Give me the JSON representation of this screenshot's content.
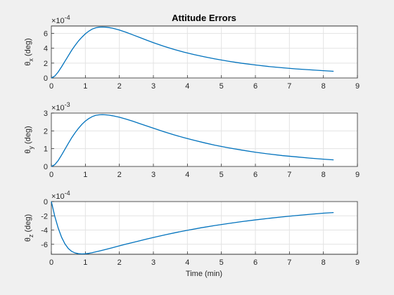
{
  "chart_data": [
    {
      "type": "line",
      "title": "Attitude Errors",
      "xlabel": "",
      "ylabel_sym": "θ",
      "ylabel_sub": "x",
      "ylabel_unit": "(deg)",
      "exponent_label": "×10",
      "exponent_power": "-4",
      "xlim": [
        0,
        9
      ],
      "ylim": [
        0,
        0.0007
      ],
      "xticks": [
        "0",
        "1",
        "2",
        "3",
        "4",
        "5",
        "6",
        "7",
        "8",
        "9"
      ],
      "yticks": [
        {
          "v": 0,
          "label": "0"
        },
        {
          "v": 0.0002,
          "label": "2"
        },
        {
          "v": 0.0004,
          "label": "4"
        },
        {
          "v": 0.0006,
          "label": "6"
        }
      ],
      "grid": true,
      "x": [
        0,
        0.1,
        0.2,
        0.3,
        0.4,
        0.5,
        0.6,
        0.7,
        0.8,
        0.9,
        1.0,
        1.1,
        1.2,
        1.3,
        1.4,
        1.5,
        1.6,
        1.7,
        1.8,
        2.0,
        2.2,
        2.4,
        2.6,
        2.8,
        3.0,
        3.3,
        3.6,
        3.9,
        4.2,
        4.5,
        4.8,
        5.2,
        5.6,
        6.0,
        6.4,
        6.8,
        7.2,
        7.6,
        8.0,
        8.3
      ],
      "y": [
        0,
        2.5e-05,
        8e-05,
        0.00015,
        0.000225,
        0.0003,
        0.000375,
        0.00044,
        0.0005,
        0.00055,
        0.000595,
        0.00063,
        0.000658,
        0.000675,
        0.000684,
        0.000686,
        0.000684,
        0.000678,
        0.00067,
        0.000645,
        0.000615,
        0.00058,
        0.000545,
        0.00051,
        0.000475,
        0.000428,
        0.000385,
        0.000348,
        0.000315,
        0.000285,
        0.000258,
        0.000226,
        0.000198,
        0.000175,
        0.000154,
        0.000137,
        0.000122,
        0.00011,
        9.8e-05,
        9e-05
      ]
    },
    {
      "type": "line",
      "title": "",
      "xlabel": "",
      "ylabel_sym": "θ",
      "ylabel_sub": "y",
      "ylabel_unit": "(deg)",
      "exponent_label": "×10",
      "exponent_power": "-3",
      "xlim": [
        0,
        9
      ],
      "ylim": [
        0,
        0.003
      ],
      "xticks": [
        "0",
        "1",
        "2",
        "3",
        "4",
        "5",
        "6",
        "7",
        "8",
        "9"
      ],
      "yticks": [
        {
          "v": 0,
          "label": "0"
        },
        {
          "v": 0.001,
          "label": "1"
        },
        {
          "v": 0.002,
          "label": "2"
        },
        {
          "v": 0.003,
          "label": "3"
        }
      ],
      "grid": true,
      "x": [
        0,
        0.1,
        0.2,
        0.3,
        0.4,
        0.5,
        0.6,
        0.7,
        0.8,
        0.9,
        1.0,
        1.1,
        1.2,
        1.3,
        1.4,
        1.5,
        1.6,
        1.7,
        1.8,
        2.0,
        2.2,
        2.4,
        2.6,
        2.8,
        3.0,
        3.3,
        3.6,
        3.9,
        4.2,
        4.5,
        4.8,
        5.2,
        5.6,
        6.0,
        6.4,
        6.8,
        7.2,
        7.6,
        8.0,
        8.3
      ],
      "y": [
        0,
        0.0001,
        0.00033,
        0.00064,
        0.00097,
        0.0013,
        0.00162,
        0.0019,
        0.00215,
        0.00237,
        0.00255,
        0.00269,
        0.0028,
        0.00287,
        0.0029,
        0.00291,
        0.0029,
        0.00288,
        0.00285,
        0.00277,
        0.00266,
        0.00254,
        0.00241,
        0.00228,
        0.00215,
        0.00196,
        0.00178,
        0.00162,
        0.00147,
        0.00133,
        0.0012,
        0.00105,
        0.00092,
        0.0008,
        0.0007,
        0.00061,
        0.00054,
        0.00047,
        0.00041,
        0.00037
      ]
    },
    {
      "type": "line",
      "title": "",
      "xlabel": "Time (min)",
      "ylabel_sym": "θ",
      "ylabel_sub": "z",
      "ylabel_unit": "(deg)",
      "exponent_label": "×10",
      "exponent_power": "-4",
      "xlim": [
        0,
        9
      ],
      "ylim": [
        -0.00074,
        0
      ],
      "xticks": [
        "0",
        "1",
        "2",
        "3",
        "4",
        "5",
        "6",
        "7",
        "8",
        "9"
      ],
      "yticks": [
        {
          "v": 0,
          "label": "0"
        },
        {
          "v": -0.0002,
          "label": "-2"
        },
        {
          "v": -0.0004,
          "label": "-4"
        },
        {
          "v": -0.0006,
          "label": "-6"
        }
      ],
      "grid": true,
      "x": [
        0,
        0.1,
        0.2,
        0.3,
        0.4,
        0.5,
        0.6,
        0.7,
        0.8,
        0.9,
        1.0,
        1.1,
        1.2,
        1.4,
        1.6,
        1.8,
        2.0,
        2.2,
        2.5,
        2.8,
        3.1,
        3.4,
        3.7,
        4.0,
        4.4,
        4.8,
        5.2,
        5.6,
        6.0,
        6.4,
        6.8,
        7.2,
        7.6,
        8.0,
        8.3
      ],
      "y": [
        0,
        -0.000205,
        -0.00037,
        -0.0005,
        -0.000595,
        -0.00066,
        -0.0007,
        -0.000722,
        -0.000732,
        -0.000735,
        -0.000733,
        -0.000727,
        -0.000718,
        -0.000696,
        -0.000672,
        -0.000647,
        -0.000622,
        -0.000597,
        -0.000562,
        -0.000527,
        -0.000493,
        -0.000461,
        -0.000431,
        -0.000403,
        -0.000368,
        -0.000337,
        -0.000308,
        -0.000281,
        -0.000257,
        -0.000235,
        -0.000215,
        -0.000196,
        -0.000179,
        -0.000163,
        -0.000154
      ]
    }
  ]
}
